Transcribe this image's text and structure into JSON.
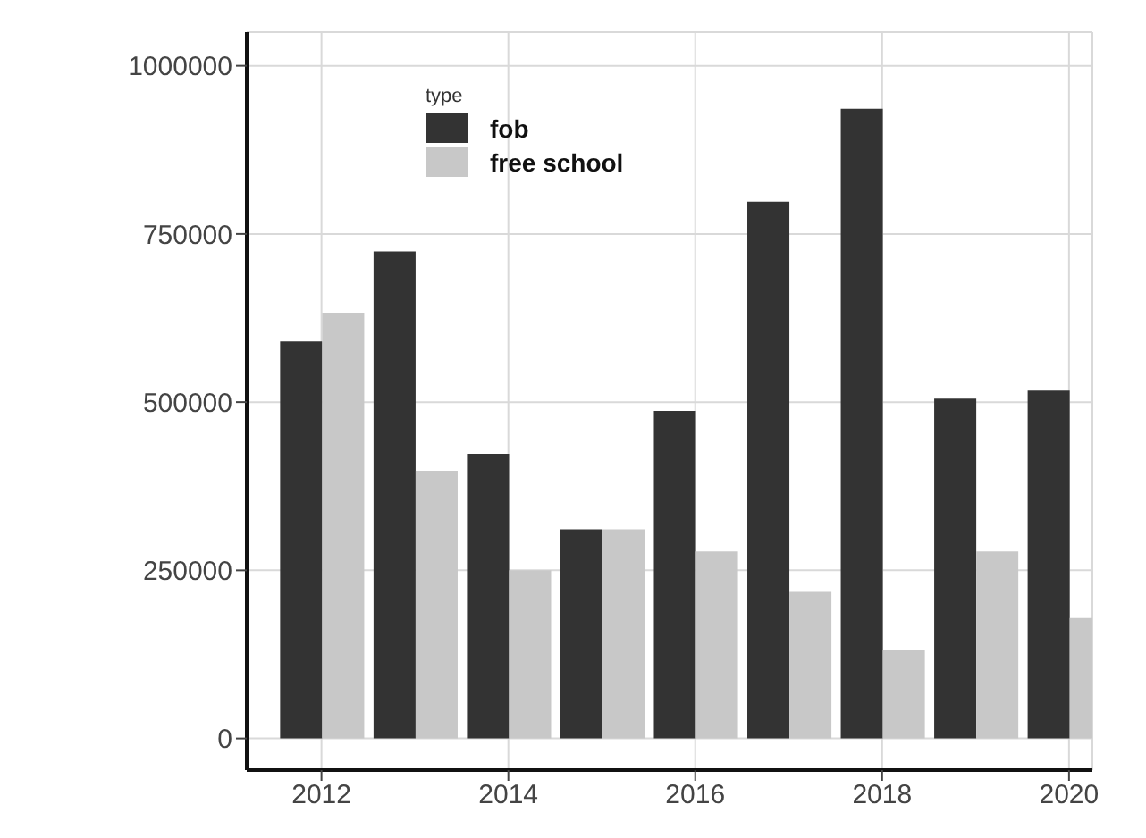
{
  "chart_data": {
    "type": "bar",
    "x": [
      2012,
      2013,
      2014,
      2015,
      2016,
      2017,
      2018,
      2019,
      2020
    ],
    "series": [
      {
        "name": "fob",
        "color": "#333333",
        "values": [
          590000,
          724000,
          423000,
          311000,
          487000,
          798000,
          936000,
          505000,
          517000
        ]
      },
      {
        "name": "free school",
        "color": "#c8c8c8",
        "values": [
          633000,
          398000,
          250000,
          311000,
          278000,
          218000,
          131000,
          278000,
          179000
        ]
      }
    ],
    "xlim": [
      2011.2,
      2020.25
    ],
    "xticks": [
      2012,
      2014,
      2016,
      2018,
      2020
    ],
    "ylim": [
      -47000,
      1050000
    ],
    "yticks": [
      0,
      250000,
      500000,
      750000,
      1000000
    ],
    "grid": true,
    "legend": "top left",
    "legend_title": "type"
  }
}
